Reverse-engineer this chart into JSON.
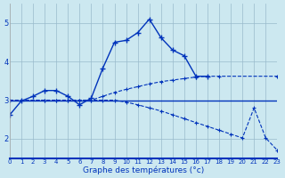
{
  "xlabel": "Graphe des températures (°c)",
  "background_color": "#cce8f0",
  "line_color": "#0033bb",
  "xlim": [
    0,
    23
  ],
  "ylim": [
    1.5,
    5.5
  ],
  "yticks": [
    2,
    3,
    4,
    5
  ],
  "xticks": [
    0,
    1,
    2,
    3,
    4,
    5,
    6,
    7,
    8,
    9,
    10,
    11,
    12,
    13,
    14,
    15,
    16,
    17,
    18,
    19,
    20,
    21,
    22,
    23
  ],
  "line1_x": [
    0,
    1,
    2,
    3,
    4,
    5,
    6,
    7,
    8,
    9,
    10,
    11,
    12,
    13,
    14,
    15,
    16,
    17
  ],
  "line1_y": [
    2.62,
    2.98,
    3.1,
    3.25,
    3.25,
    3.1,
    2.88,
    3.05,
    3.83,
    4.5,
    4.55,
    4.75,
    5.1,
    4.62,
    4.3,
    4.15,
    3.62,
    3.62
  ],
  "line2_x": [
    0,
    3,
    4,
    5,
    6,
    7,
    8,
    9,
    10,
    11,
    12,
    13,
    14,
    15,
    16,
    17,
    18,
    19,
    20,
    21,
    22,
    23
  ],
  "line2_y": [
    3.0,
    3.0,
    3.0,
    3.0,
    3.0,
    3.0,
    3.0,
    3.0,
    3.0,
    3.0,
    3.0,
    3.0,
    3.0,
    3.0,
    3.0,
    3.0,
    3.0,
    3.0,
    3.0,
    3.0,
    3.0,
    3.0
  ],
  "line3_x": [
    0,
    3,
    4,
    5,
    6,
    7,
    8,
    9,
    10,
    11,
    12,
    13,
    14,
    15,
    16,
    17,
    18,
    23
  ],
  "line3_y": [
    3.0,
    3.0,
    3.0,
    3.0,
    3.0,
    3.0,
    3.1,
    3.2,
    3.28,
    3.35,
    3.42,
    3.48,
    3.52,
    3.56,
    3.6,
    3.62,
    3.62,
    3.62
  ],
  "line4_x": [
    0,
    3,
    4,
    5,
    6,
    7,
    8,
    9,
    10,
    11,
    12,
    13,
    14,
    15,
    16,
    17,
    18,
    19,
    20,
    21,
    22,
    23
  ],
  "line4_y": [
    3.0,
    3.0,
    3.0,
    3.0,
    3.0,
    3.0,
    3.0,
    3.0,
    2.95,
    2.88,
    2.8,
    2.72,
    2.62,
    2.52,
    2.42,
    2.32,
    2.22,
    2.12,
    2.02,
    2.8,
    2.02,
    1.7
  ]
}
